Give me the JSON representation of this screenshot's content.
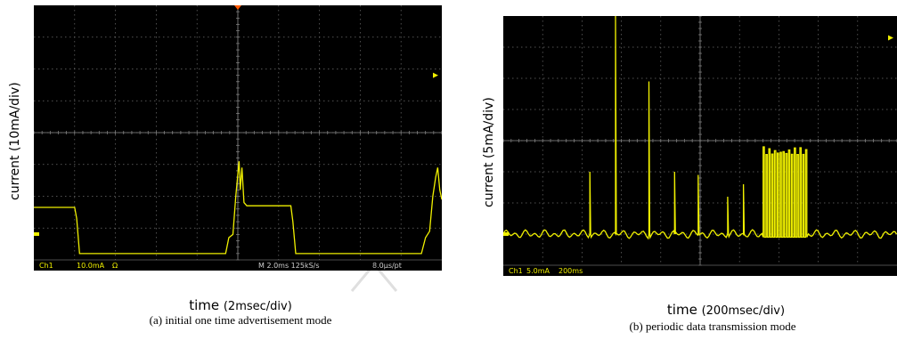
{
  "chart_data": [
    {
      "type": "line",
      "id": "a",
      "xlabel": "time",
      "xlabel_unit": "(2msec/div)",
      "ylabel": "current (10mA/div)",
      "caption": "(a)  initial one time advertisement mode",
      "grid": true,
      "divisions": {
        "x": 10,
        "y": 8
      },
      "xlim": [
        0,
        10
      ],
      "ylim": [
        0,
        8
      ],
      "trace_color": "#f0f000",
      "background": "#000000",
      "status": {
        "channel": "Ch1",
        "scale": "10.0mA",
        "ohm": "Ω",
        "timebase": "M 2.0ms 125kS/s",
        "resolution": "8.0μs/pt"
      },
      "series": [
        {
          "x": [
            0,
            1.0,
            1.05,
            1.12,
            4.7,
            4.78,
            4.88,
            4.95,
            5.0,
            5.03,
            5.06,
            5.1,
            5.15,
            5.22,
            5.3,
            6.3,
            6.35,
            6.42,
            9.5,
            9.6,
            9.7,
            9.78,
            9.85,
            9.9,
            9.95,
            10.0
          ],
          "values": [
            1.65,
            1.65,
            1.3,
            0.2,
            0.2,
            0.7,
            0.8,
            2.0,
            2.7,
            3.1,
            2.2,
            2.9,
            1.8,
            1.7,
            1.7,
            1.7,
            1.2,
            0.2,
            0.2,
            0.7,
            0.9,
            2.0,
            2.6,
            2.9,
            2.2,
            1.9
          ]
        }
      ]
    },
    {
      "type": "line",
      "id": "b",
      "xlabel": "time",
      "xlabel_unit": "(200msec/div)",
      "ylabel": "current (5mA/div)",
      "caption": "(b)  periodic data transmission mode",
      "grid": true,
      "divisions": {
        "x": 10,
        "y": 8
      },
      "xlim": [
        0,
        10
      ],
      "ylim": [
        0,
        8
      ],
      "trace_color": "#f0f000",
      "background": "#000000",
      "status": {
        "channel": "Ch1",
        "scale": "5.0mA",
        "timebase": "200ms"
      },
      "baseline": 1.0,
      "spikes": [
        {
          "x": 2.2,
          "value": 3.0
        },
        {
          "x": 2.85,
          "value": 8.0
        },
        {
          "x": 3.7,
          "value": 5.9
        },
        {
          "x": 4.35,
          "value": 3.0
        },
        {
          "x": 4.95,
          "value": 2.9
        },
        {
          "x": 5.7,
          "value": 2.2
        },
        {
          "x": 6.1,
          "value": 2.6
        },
        {
          "x": 6.9,
          "value": 7.8
        },
        {
          "x": 7.25,
          "value": 6.2
        },
        {
          "x": 7.45,
          "value": 5.4
        }
      ],
      "burst": {
        "x_start": 6.6,
        "x_end": 7.75,
        "high": 3.8,
        "low": 0.9,
        "pulses": 16
      }
    }
  ]
}
